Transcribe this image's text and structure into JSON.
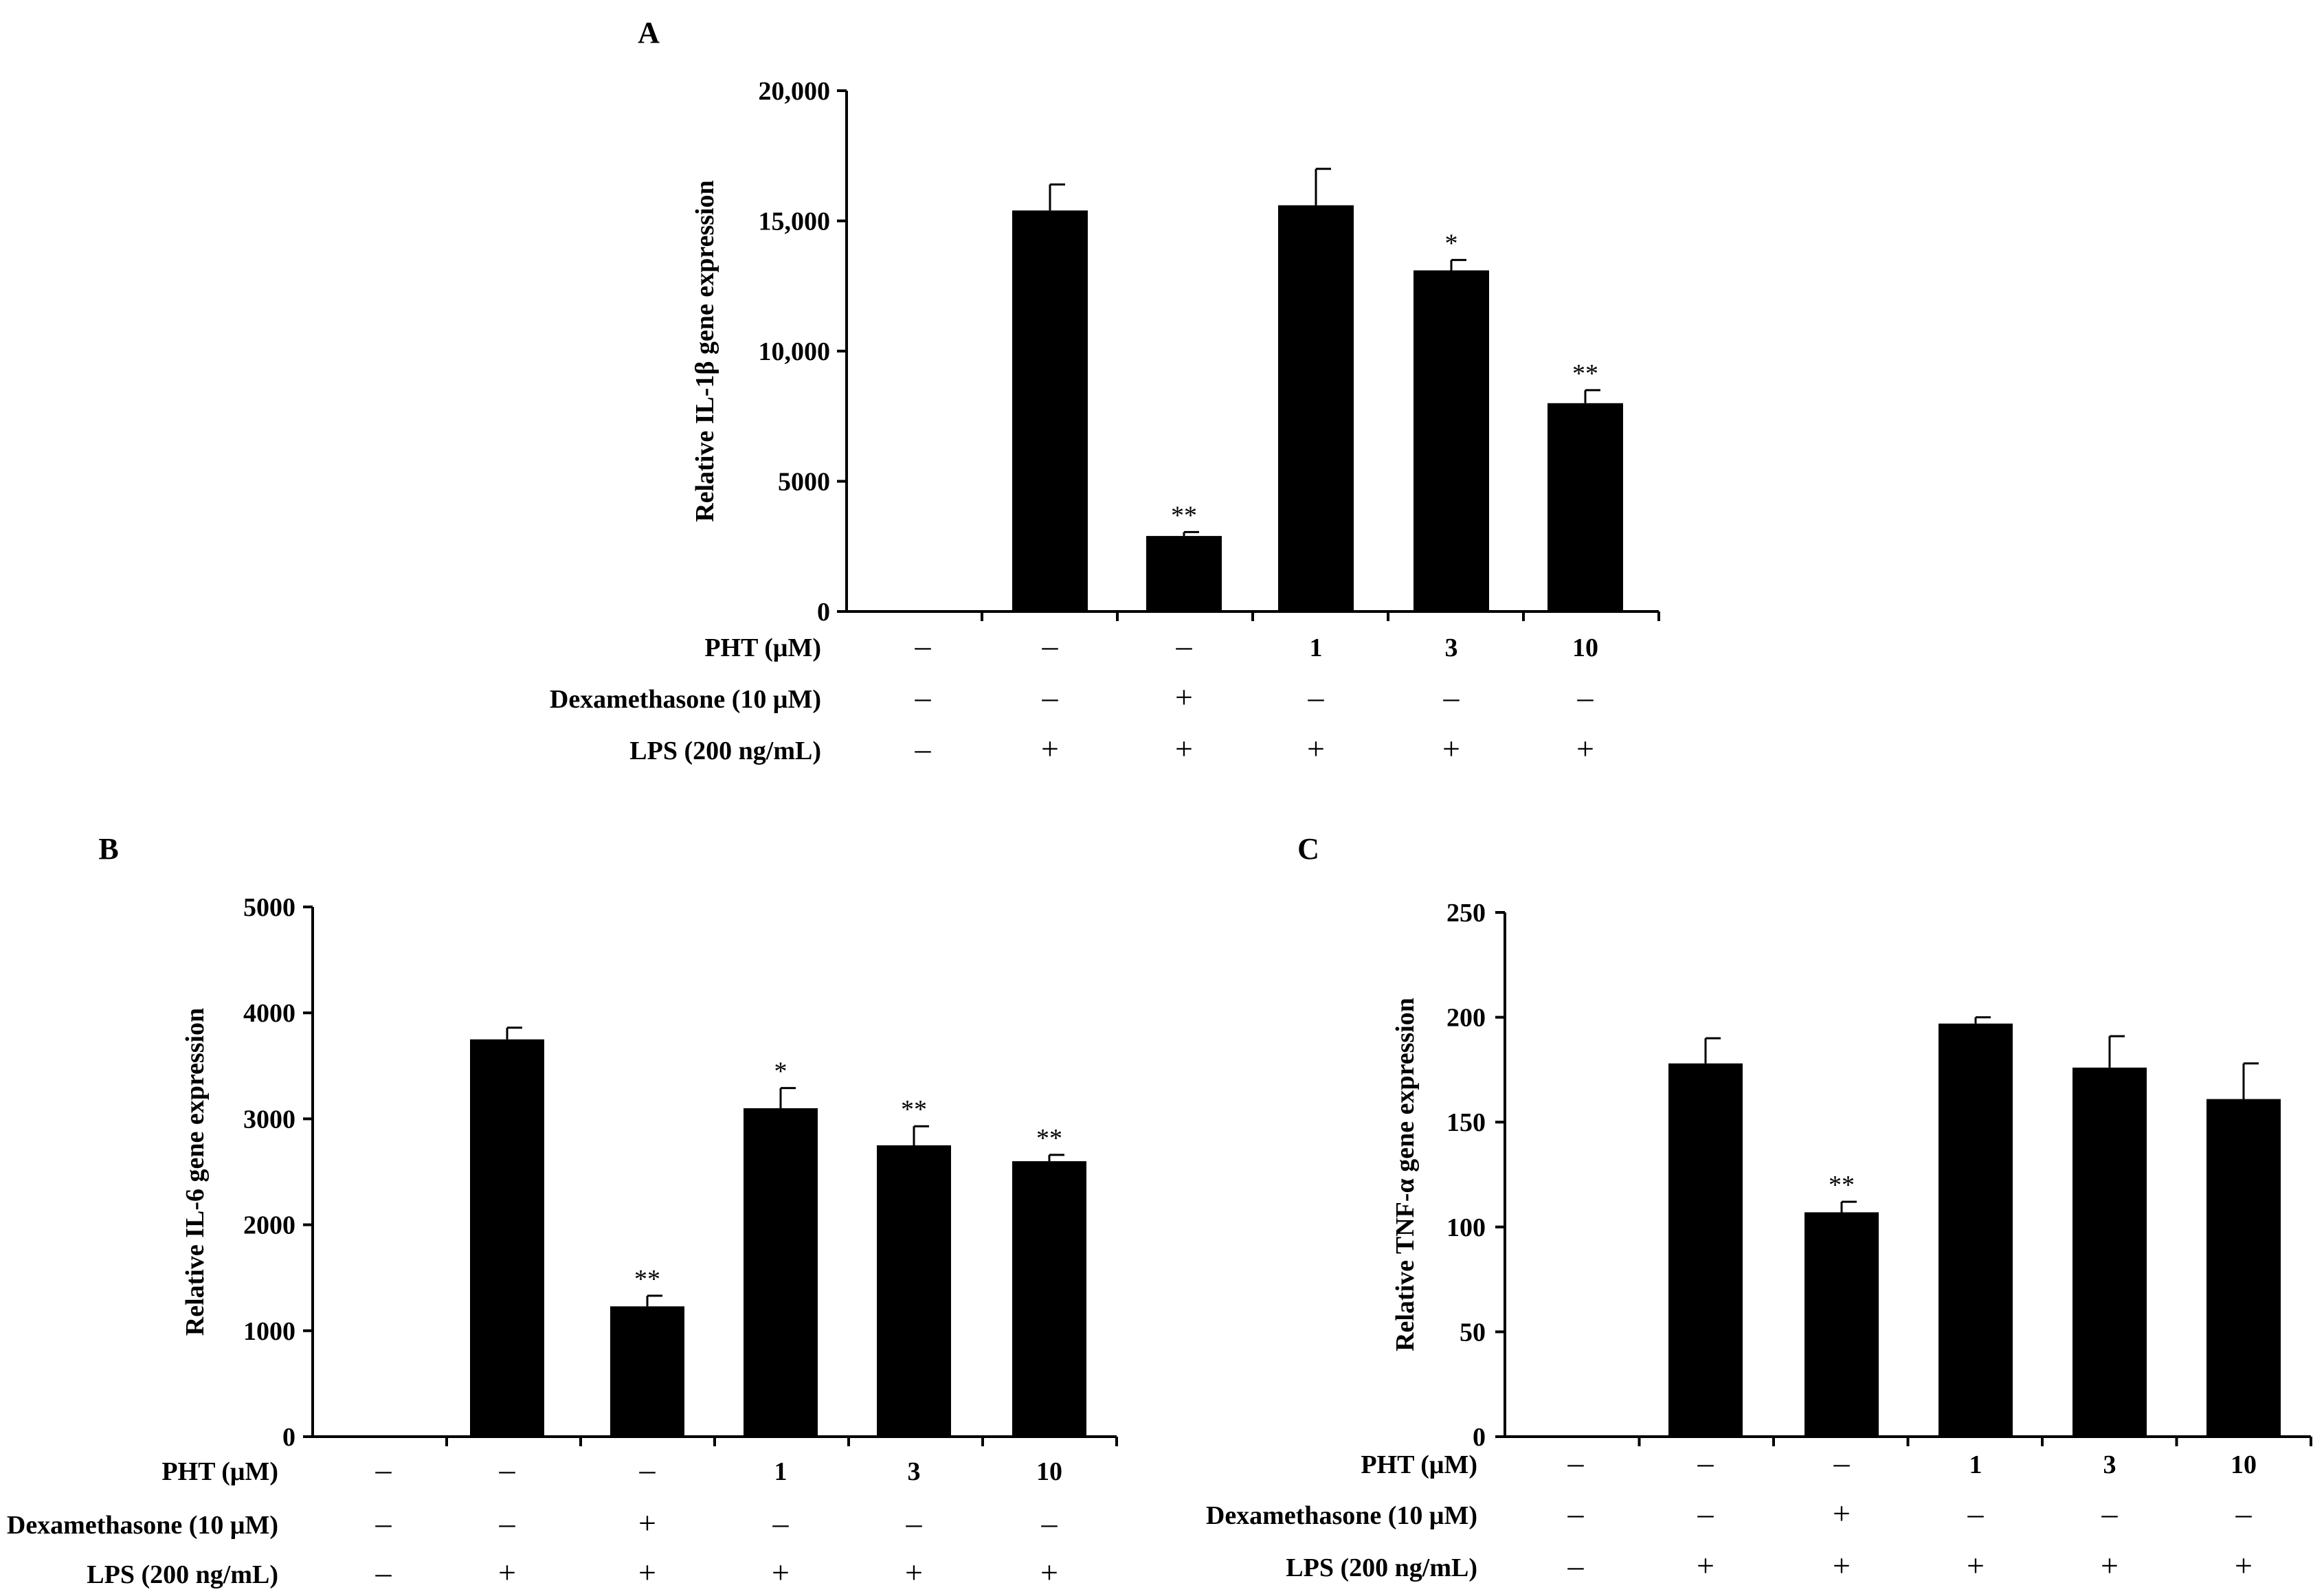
{
  "chart_data": [
    {
      "panel": "A",
      "type": "bar",
      "ylabel": "Relative IL-1β gene expression",
      "ylim": [
        0,
        20000
      ],
      "yticks": [
        0,
        5000,
        10000,
        15000,
        20000
      ],
      "ytick_labels": [
        "0",
        "5000",
        "10,000",
        "15,000",
        "20,000"
      ],
      "values": [
        0,
        15400,
        2900,
        15600,
        13100,
        8000
      ],
      "errors": [
        0,
        1000,
        150,
        1400,
        400,
        500
      ],
      "significance": [
        "",
        "",
        "**",
        "",
        "*",
        "**"
      ],
      "rows": [
        {
          "label": "PHT  (μM)",
          "values": [
            "–",
            "–",
            "–",
            "1",
            "3",
            "10"
          ]
        },
        {
          "label": "Dexamethasone (10 μM)",
          "values": [
            "–",
            "–",
            "+",
            "–",
            "–",
            "–"
          ]
        },
        {
          "label": "LPS (200 ng/mL)",
          "values": [
            "–",
            "+",
            "+",
            "+",
            "+",
            "+"
          ]
        }
      ]
    },
    {
      "panel": "B",
      "type": "bar",
      "ylabel": "Relative IL-6 gene expression",
      "ylim": [
        0,
        5000
      ],
      "yticks": [
        0,
        1000,
        2000,
        3000,
        4000,
        5000
      ],
      "ytick_labels": [
        "0",
        "1000",
        "2000",
        "3000",
        "4000",
        "5000"
      ],
      "values": [
        0,
        3750,
        1230,
        3100,
        2750,
        2600
      ],
      "errors": [
        0,
        110,
        100,
        190,
        180,
        60
      ],
      "significance": [
        "",
        "",
        "**",
        "*",
        "**",
        "**"
      ],
      "rows": [
        {
          "label": "PHT  (μM)",
          "values": [
            "–",
            "–",
            "–",
            "1",
            "3",
            "10"
          ]
        },
        {
          "label": "Dexamethasone (10 μM)",
          "values": [
            "–",
            "–",
            "+",
            "–",
            "–",
            "–"
          ]
        },
        {
          "label": "LPS (200 ng/mL)",
          "values": [
            "–",
            "+",
            "+",
            "+",
            "+",
            "+"
          ]
        }
      ]
    },
    {
      "panel": "C",
      "type": "bar",
      "ylabel": "Relative TNF-α gene expression",
      "ylim": [
        0,
        250
      ],
      "yticks": [
        0,
        50,
        100,
        150,
        200,
        250
      ],
      "ytick_labels": [
        "0",
        "50",
        "100",
        "150",
        "200",
        "250"
      ],
      "values": [
        0,
        178,
        107,
        197,
        176,
        161
      ],
      "errors": [
        0,
        12,
        5,
        3,
        15,
        17
      ],
      "significance": [
        "",
        "",
        "**",
        "",
        "",
        ""
      ],
      "rows": [
        {
          "label": "PHT  (μM)",
          "values": [
            "–",
            "–",
            "–",
            "1",
            "3",
            "10"
          ]
        },
        {
          "label": "Dexamethasone (10 μM)",
          "values": [
            "–",
            "–",
            "+",
            "–",
            "–",
            "–"
          ]
        },
        {
          "label": "LPS (200 ng/mL)",
          "values": [
            "–",
            "+",
            "+",
            "+",
            "+",
            "+"
          ]
        }
      ]
    }
  ]
}
